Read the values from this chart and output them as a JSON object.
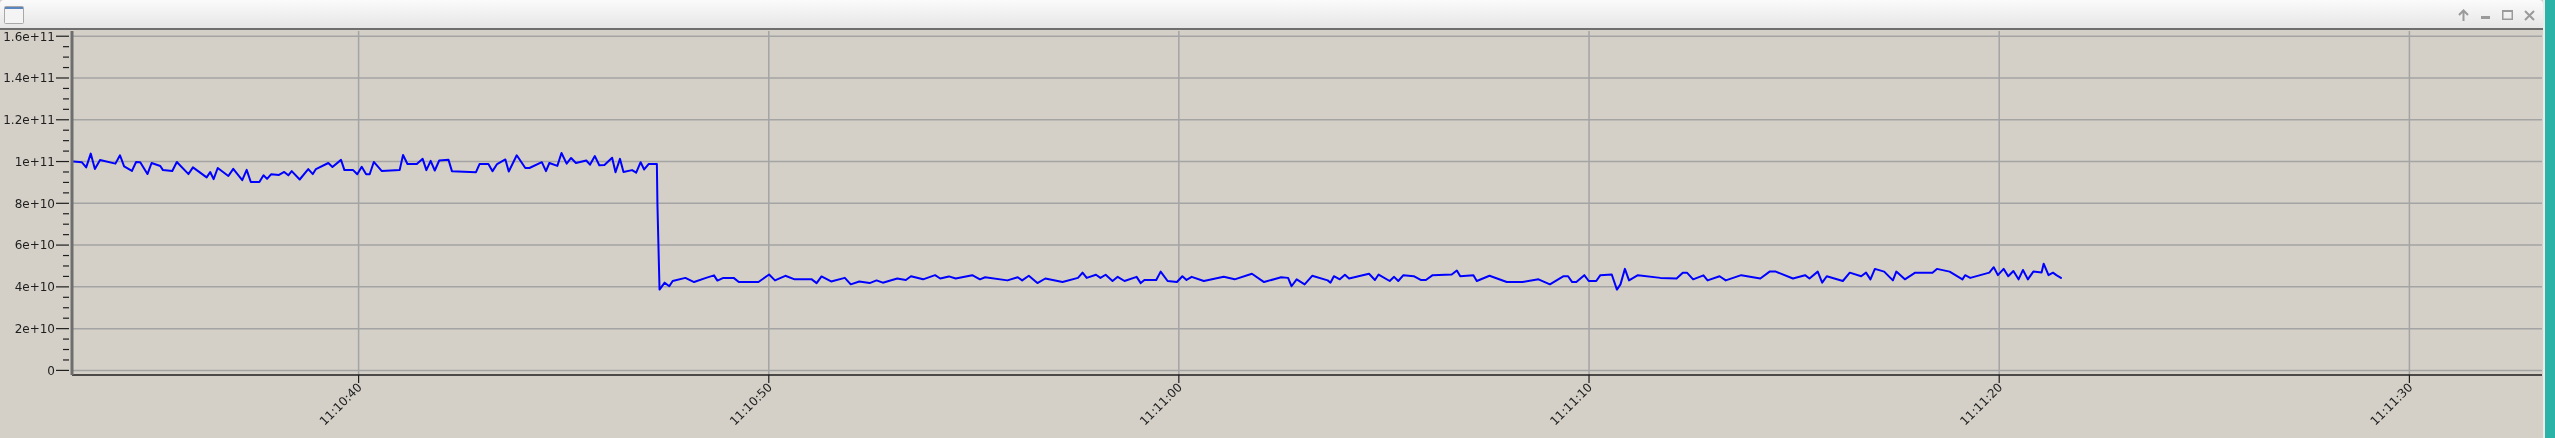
{
  "chart_data": {
    "type": "line",
    "x": [
      11.175847,
      11.175903,
      11.175933,
      11.175964,
      11.175992,
      11.176027,
      11.176131,
      11.176162,
      11.17619,
      11.176243,
      11.176271,
      11.176299,
      11.176348,
      11.176376,
      11.176435,
      11.176453,
      11.176516,
      11.176547,
      11.176626,
      11.176656,
      11.176749,
      11.176773,
      11.176796,
      11.176824,
      11.176896,
      11.176929,
      11.17699,
      11.17702,
      11.177048,
      11.177106,
      11.177134,
      11.177158,
      11.177185,
      11.177239,
      11.177274,
      11.177302,
      11.177325,
      11.177379,
      11.177437,
      11.177468,
      11.177489,
      11.177573,
      11.177601,
      11.177659,
      11.177682,
      11.177741,
      11.177769,
      11.177799,
      11.177829,
      11.177853,
      11.177881,
      11.177934,
      11.178056,
      11.178079,
      11.178109,
      11.178172,
      11.178212,
      11.178237,
      11.178266,
      11.178294,
      11.178324,
      11.178387,
      11.17841,
      11.178573,
      11.178597,
      11.178657,
      11.178685,
      11.178716,
      11.178772,
      11.178795,
      11.178849,
      11.178907,
      11.178935,
      11.179019,
      11.179047,
      11.17907,
      11.179124,
      11.179152,
      11.179187,
      11.179217,
      11.17925,
      11.17932,
      11.179345,
      11.179378,
      11.179408,
      11.179443,
      11.179495,
      11.179518,
      11.179548,
      11.179572,
      11.17963,
      11.179658,
      11.179688,
      11.179712,
      11.179742,
      11.179798,
      11.179802,
      11.179809,
      11.179816,
      11.179851,
      11.179882,
      11.179905,
      11.179991,
      11.18005,
      11.180131,
      11.180185,
      11.180208,
      11.180248,
      11.180318,
      11.180353,
      11.180486,
      11.180558,
      11.180598,
      11.180668,
      11.180731,
      11.180847,
      11.18088,
      11.180913,
      11.180978,
      11.181071,
      11.181111,
      11.181169,
      11.181239,
      11.181286,
      11.181328,
      11.181426,
      11.181484,
      11.181519,
      11.181601,
      11.181682,
      11.181717,
      11.181776,
      11.181822,
      11.181934,
      11.181986,
      11.182021,
      11.182172,
      11.182242,
      11.182272,
      11.182317,
      11.182375,
      11.182429,
      11.182545,
      11.18265,
      11.182681,
      11.182709,
      11.182772,
      11.182802,
      11.182837,
      11.182884,
      11.182919,
      11.182965,
      11.183047,
      11.183075,
      11.1831,
      11.18318,
      11.18321,
      11.183257,
      11.18332,
      11.183357,
      11.183385,
      11.18342,
      11.183502,
      11.183637,
      11.183711,
      11.183828,
      11.18391,
      11.184026,
      11.184073,
      11.184096,
      11.184131,
      11.184185,
      11.184236,
      11.184341,
      11.18436,
      11.184383,
      11.184423,
      11.184458,
      11.184486,
      11.184621,
      11.184661,
      11.184686,
      11.184761,
      11.184791,
      11.184819,
      11.184854,
      11.184924,
      11.184971,
      11.185006,
      11.185052,
      11.185181,
      11.185216,
      11.185239,
      11.185328,
      11.185351,
      11.185437,
      11.185554,
      11.185659,
      11.185769,
      11.185846,
      11.185939,
      11.185969,
      11.185997,
      11.186025,
      11.186079,
      11.186109,
      11.18616,
      11.186188,
      11.186265,
      11.1863,
      11.186324,
      11.186354,
      11.186382,
      11.186442,
      11.186594,
      11.186704,
      11.186746,
      11.186774,
      11.186816,
      11.186886,
      11.186914,
      11.186995,
      11.187037,
      11.187142,
      11.187271,
      11.187334,
      11.187376,
      11.187492,
      11.187574,
      11.187604,
      11.18766,
      11.18769,
      11.187721,
      11.18783,
      11.187877,
      11.187954,
      11.187987,
      11.188017,
      11.188047,
      11.18811,
      11.188169,
      11.188192,
      11.18825,
      11.18832,
      11.188437,
      11.188467,
      11.188553,
      11.18864,
      11.188658,
      11.188693,
      11.188822,
      11.188852,
      11.18888,
      11.188919,
      11.18895,
      11.188985,
      11.18902,
      11.18905,
      11.189083,
      11.18912,
      11.189176,
      11.18919,
      11.189223,
      11.189253,
      11.189276,
      11.189307
    ],
    "series": [
      {
        "color": "#0000ff",
        "values": [
          100000000000.0,
          99700000000.0,
          97200000000.0,
          103800000000.0,
          96400000000.0,
          100700000000.0,
          99000000000.0,
          103000000000.0,
          97700000000.0,
          95500000000.0,
          99800000000.0,
          99700000000.0,
          94000000000.0,
          99300000000.0,
          97900000000.0,
          95900000000.0,
          95500000000.0,
          99800000000.0,
          94000000000.0,
          97200000000.0,
          92400000000.0,
          95000000000.0,
          91600000000.0,
          96900000000.0,
          93100000000.0,
          96500000000.0,
          91100000000.0,
          96000000000.0,
          90200000000.0,
          90200000000.0,
          93400000000.0,
          91700000000.0,
          93900000000.0,
          93600000000.0,
          95000000000.0,
          93400000000.0,
          95400000000.0,
          91400000000.0,
          96400000000.0,
          94000000000.0,
          96400000000.0,
          99300000000.0,
          97400000000.0,
          100800000000.0,
          95900000000.0,
          95900000000.0,
          93900000000.0,
          97500000000.0,
          93900000000.0,
          93900000000.0,
          99800000000.0,
          95500000000.0,
          95900000000.0,
          103100000000.0,
          98800000000.0,
          98800000000.0,
          101300000000.0,
          95900000000.0,
          100300000000.0,
          95700000000.0,
          100500000000.0,
          100800000000.0,
          95400000000.0,
          94900000000.0,
          98800000000.0,
          98800000000.0,
          95400000000.0,
          98800000000.0,
          101000000000.0,
          95200000000.0,
          103000000000.0,
          96900000000.0,
          96900000000.0,
          99700000000.0,
          95400000000.0,
          99300000000.0,
          97900000000.0,
          104100000000.0,
          99000000000.0,
          101700000000.0,
          99300000000.0,
          100500000000.0,
          98500000000.0,
          102600000000.0,
          98200000000.0,
          98300000000.0,
          101800000000.0,
          94900000000.0,
          101300000000.0,
          95000000000.0,
          95900000000.0,
          94700000000.0,
          99700000000.0,
          96200000000.0,
          98800000000.0,
          98800000000.0,
          79000000000.0,
          58800000000.0,
          38700000000.0,
          42000000000.0,
          40300000000.0,
          42800000000.0,
          44300000000.0,
          42300000000.0,
          44300000000.0,
          45500000000.0,
          43000000000.0,
          44300000000.0,
          44300000000.0,
          42300000000.0,
          42300000000.0,
          45900000000.0,
          43100000000.0,
          45300000000.0,
          43600000000.0,
          43600000000.0,
          41800000000.0,
          45000000000.0,
          42600000000.0,
          44300000000.0,
          41200000000.0,
          42600000000.0,
          41800000000.0,
          43100000000.0,
          42000000000.0,
          44000000000.0,
          43300000000.0,
          45100000000.0,
          43600000000.0,
          45600000000.0,
          44000000000.0,
          45000000000.0,
          44000000000.0,
          45600000000.0,
          43600000000.0,
          44600000000.0,
          43100000000.0,
          44600000000.0,
          43100000000.0,
          45300000000.0,
          41800000000.0,
          44000000000.0,
          42300000000.0,
          44300000000.0,
          46800000000.0,
          44300000000.0,
          45800000000.0,
          44300000000.0,
          45800000000.0,
          42800000000.0,
          44800000000.0,
          42800000000.0,
          44800000000.0,
          41800000000.0,
          43300000000.0,
          43300000000.0,
          47300000000.0,
          42800000000.0,
          42300000000.0,
          45100000000.0,
          43300000000.0,
          44800000000.0,
          42800000000.0,
          44800000000.0,
          43600000000.0,
          46300000000.0,
          42300000000.0,
          44600000000.0,
          44300000000.0,
          40300000000.0,
          43600000000.0,
          41200000000.0,
          45300000000.0,
          43100000000.0,
          42000000000.0,
          45100000000.0,
          43600000000.0,
          45800000000.0,
          44000000000.0,
          46300000000.0,
          43300000000.0,
          45900000000.0,
          42800000000.0,
          44800000000.0,
          42800000000.0,
          45600000000.0,
          45100000000.0,
          43300000000.0,
          43300000000.0,
          45600000000.0,
          45900000000.0,
          47800000000.0,
          45100000000.0,
          45600000000.0,
          42800000000.0,
          45300000000.0,
          42300000000.0,
          42300000000.0,
          43600000000.0,
          41200000000.0,
          45100000000.0,
          45100000000.0,
          42300000000.0,
          42300000000.0,
          45600000000.0,
          42800000000.0,
          42800000000.0,
          45600000000.0,
          45900000000.0,
          38700000000.0,
          41200000000.0,
          48600000000.0,
          43100000000.0,
          45600000000.0,
          44300000000.0,
          44000000000.0,
          46800000000.0,
          46800000000.0,
          43600000000.0,
          45500000000.0,
          43100000000.0,
          45100000000.0,
          43100000000.0,
          45600000000.0,
          44000000000.0,
          47300000000.0,
          47300000000.0,
          44000000000.0,
          45600000000.0,
          44000000000.0,
          47300000000.0,
          42000000000.0,
          45100000000.0,
          42800000000.0,
          46800000000.0,
          45100000000.0,
          46800000000.0,
          43600000000.0,
          48600000000.0,
          47300000000.0,
          43100000000.0,
          47300000000.0,
          43600000000.0,
          46800000000.0,
          46800000000.0,
          48600000000.0,
          47300000000.0,
          43600000000.0,
          45600000000.0,
          44300000000.0,
          46800000000.0,
          49400000000.0,
          45600000000.0,
          48600000000.0,
          45100000000.0,
          47600000000.0,
          43600000000.0,
          48100000000.0,
          43600000000.0,
          47300000000.0,
          46900000000.0,
          51100000000.0,
          45600000000.0,
          46800000000.0,
          45600000000.0,
          44300000000.0
        ]
      }
    ],
    "xlim": [
      11.175837,
      11.192565
    ],
    "xticks": [
      {
        "value": 11.177778,
        "label": "11:10:40"
      },
      {
        "value": 11.180556,
        "label": "11:10:50"
      },
      {
        "value": 11.183333,
        "label": "11:11:00"
      },
      {
        "value": 11.186111,
        "label": "11:11:10"
      },
      {
        "value": 11.188889,
        "label": "11:11:20"
      },
      {
        "value": 11.191667,
        "label": "11:11:30"
      }
    ],
    "ylim": [
      -2200000000.0,
      162500000000.0
    ],
    "yticks": [
      0,
      {
        "value": 5000000000.0,
        "label": null
      },
      {
        "value": 10000000000.0,
        "label": null
      },
      {
        "value": 15000000000.0,
        "label": null
      },
      {
        "value": 20000000000.0,
        "label": "2e+10"
      },
      {
        "value": 25000000000.0,
        "label": null
      },
      {
        "value": 30000000000.0,
        "label": null
      },
      {
        "value": 35000000000.0,
        "label": null
      },
      {
        "value": 40000000000.0,
        "label": "4e+10"
      },
      {
        "value": 45000000000.0,
        "label": null
      },
      {
        "value": 50000000000.0,
        "label": null
      },
      {
        "value": 55000000000.0,
        "label": null
      },
      {
        "value": 60000000000.0,
        "label": "6e+10"
      },
      {
        "value": 65000000000.0,
        "label": null
      },
      {
        "value": 70000000000.0,
        "label": null
      },
      {
        "value": 75000000000.0,
        "label": null
      },
      {
        "value": 80000000000.0,
        "label": "8e+10"
      },
      {
        "value": 85000000000.0,
        "label": null
      },
      {
        "value": 90000000000.0,
        "label": null
      },
      {
        "value": 95000000000.0,
        "label": null
      },
      {
        "value": 100000000000.0,
        "label": "1e+11"
      },
      {
        "value": 105000000000.0,
        "label": null
      },
      {
        "value": 110000000000.0,
        "label": null
      },
      {
        "value": 115000000000.0,
        "label": null
      },
      {
        "value": 120000000000.0,
        "label": "1.2e+11"
      },
      {
        "value": 125000000000.0,
        "label": null
      },
      {
        "value": 130000000000.0,
        "label": null
      },
      {
        "value": 135000000000.0,
        "label": null
      },
      {
        "value": 140000000000.0,
        "label": "1.4e+11"
      },
      {
        "value": 145000000000.0,
        "label": null
      },
      {
        "value": 150000000000.0,
        "label": null
      },
      {
        "value": 155000000000.0,
        "label": null
      },
      {
        "value": 160000000000.0,
        "label": "1.6e+11"
      }
    ],
    "grid": true
  }
}
